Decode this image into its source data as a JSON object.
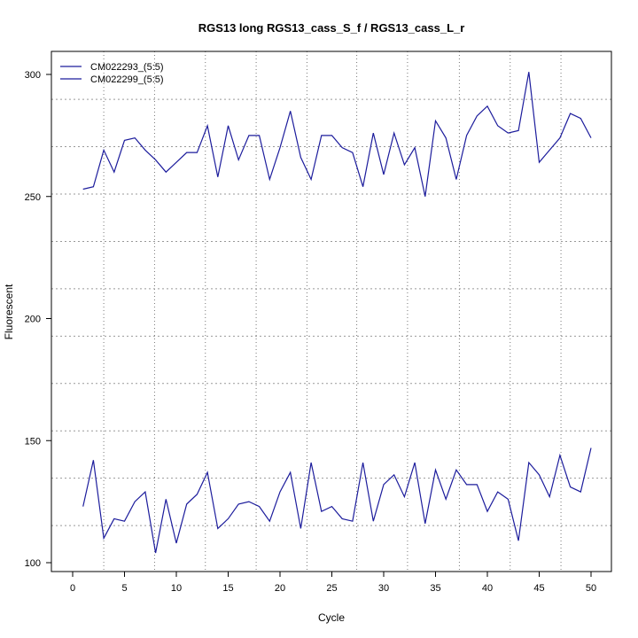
{
  "chart_data": {
    "type": "line",
    "title": "RGS13 long RGS13_cass_S_f / RGS13_cass_L_r",
    "xlabel": "Cycle",
    "ylabel": "Fluorescent",
    "xlim": [
      -2,
      52
    ],
    "ylim": [
      96,
      305
    ],
    "xticks": [
      0,
      5,
      10,
      15,
      20,
      25,
      30,
      35,
      40,
      45,
      50
    ],
    "yticks": [
      100,
      150,
      200,
      250,
      300
    ],
    "vgrid": [
      3.0,
      7.9,
      12.8,
      17.7,
      22.6,
      27.4,
      32.3,
      37.3,
      42.2,
      47.1
    ],
    "hgrid": [
      115.2,
      134.6,
      154,
      173.4,
      192.8,
      212.2,
      231.6,
      251,
      270.4,
      289.8
    ],
    "legend_position": "top-left",
    "x": [
      1,
      2,
      3,
      4,
      5,
      6,
      7,
      8,
      9,
      10,
      11,
      12,
      13,
      14,
      15,
      16,
      17,
      18,
      19,
      20,
      21,
      22,
      23,
      24,
      25,
      26,
      27,
      28,
      29,
      30,
      31,
      32,
      33,
      34,
      35,
      36,
      37,
      38,
      39,
      40,
      41,
      42,
      43,
      44,
      45,
      46,
      47,
      48,
      49,
      50
    ],
    "series": [
      {
        "name": "CM022293_(5:5)",
        "color": "#1c1c9c",
        "values": [
          253,
          254,
          269,
          260,
          273,
          274,
          269,
          265,
          260,
          264,
          268,
          268,
          279,
          258,
          279,
          265,
          275,
          275,
          257,
          270,
          285,
          266,
          257,
          275,
          275,
          270,
          268,
          254,
          276,
          259,
          276,
          263,
          270,
          250,
          281,
          274,
          257,
          275,
          283,
          287,
          279,
          276,
          277,
          301,
          264,
          269,
          274,
          284,
          282,
          274
        ]
      },
      {
        "name": "CM022299_(5:5)",
        "color": "#1c1c9c",
        "values": [
          123,
          142,
          110,
          118,
          117,
          125,
          129,
          104,
          126,
          108,
          124,
          128,
          137,
          114,
          118,
          124,
          125,
          123,
          117,
          129,
          137,
          114,
          141,
          121,
          123,
          118,
          117,
          141,
          117,
          132,
          136,
          127,
          141,
          116,
          138,
          126,
          138,
          132,
          132,
          121,
          129,
          126,
          109,
          141,
          136,
          127,
          144,
          131,
          129,
          147
        ]
      }
    ]
  }
}
